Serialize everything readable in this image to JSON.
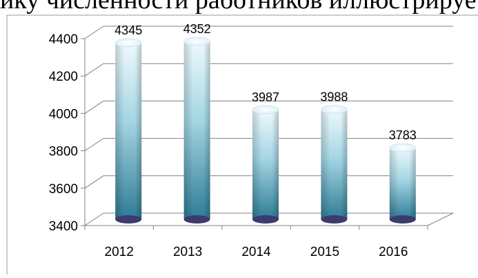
{
  "page": {
    "caption_fragment": "ику численности работников иллюстрирует"
  },
  "chart_data": {
    "type": "bar",
    "categories": [
      "2012",
      "2013",
      "2014",
      "2015",
      "2016"
    ],
    "values": [
      4345,
      4352,
      3987,
      3988,
      3783
    ],
    "data_labels": [
      "4345",
      "4352",
      "3987",
      "3988",
      "3783"
    ],
    "y_ticks": [
      "3400",
      "3600",
      "3800",
      "4000",
      "4200",
      "4400"
    ],
    "ylim": [
      3400,
      4400
    ],
    "title": "",
    "xlabel": "",
    "ylabel": "",
    "grid": true,
    "legend": "none",
    "style": "3d-cylinder",
    "colors": {
      "bar_top": "#e8f6fb",
      "bar_mid": "#7fc3d6",
      "bar_bottom": "#2f7f98",
      "base": "#3c3a6e",
      "grid": "#808080"
    }
  }
}
